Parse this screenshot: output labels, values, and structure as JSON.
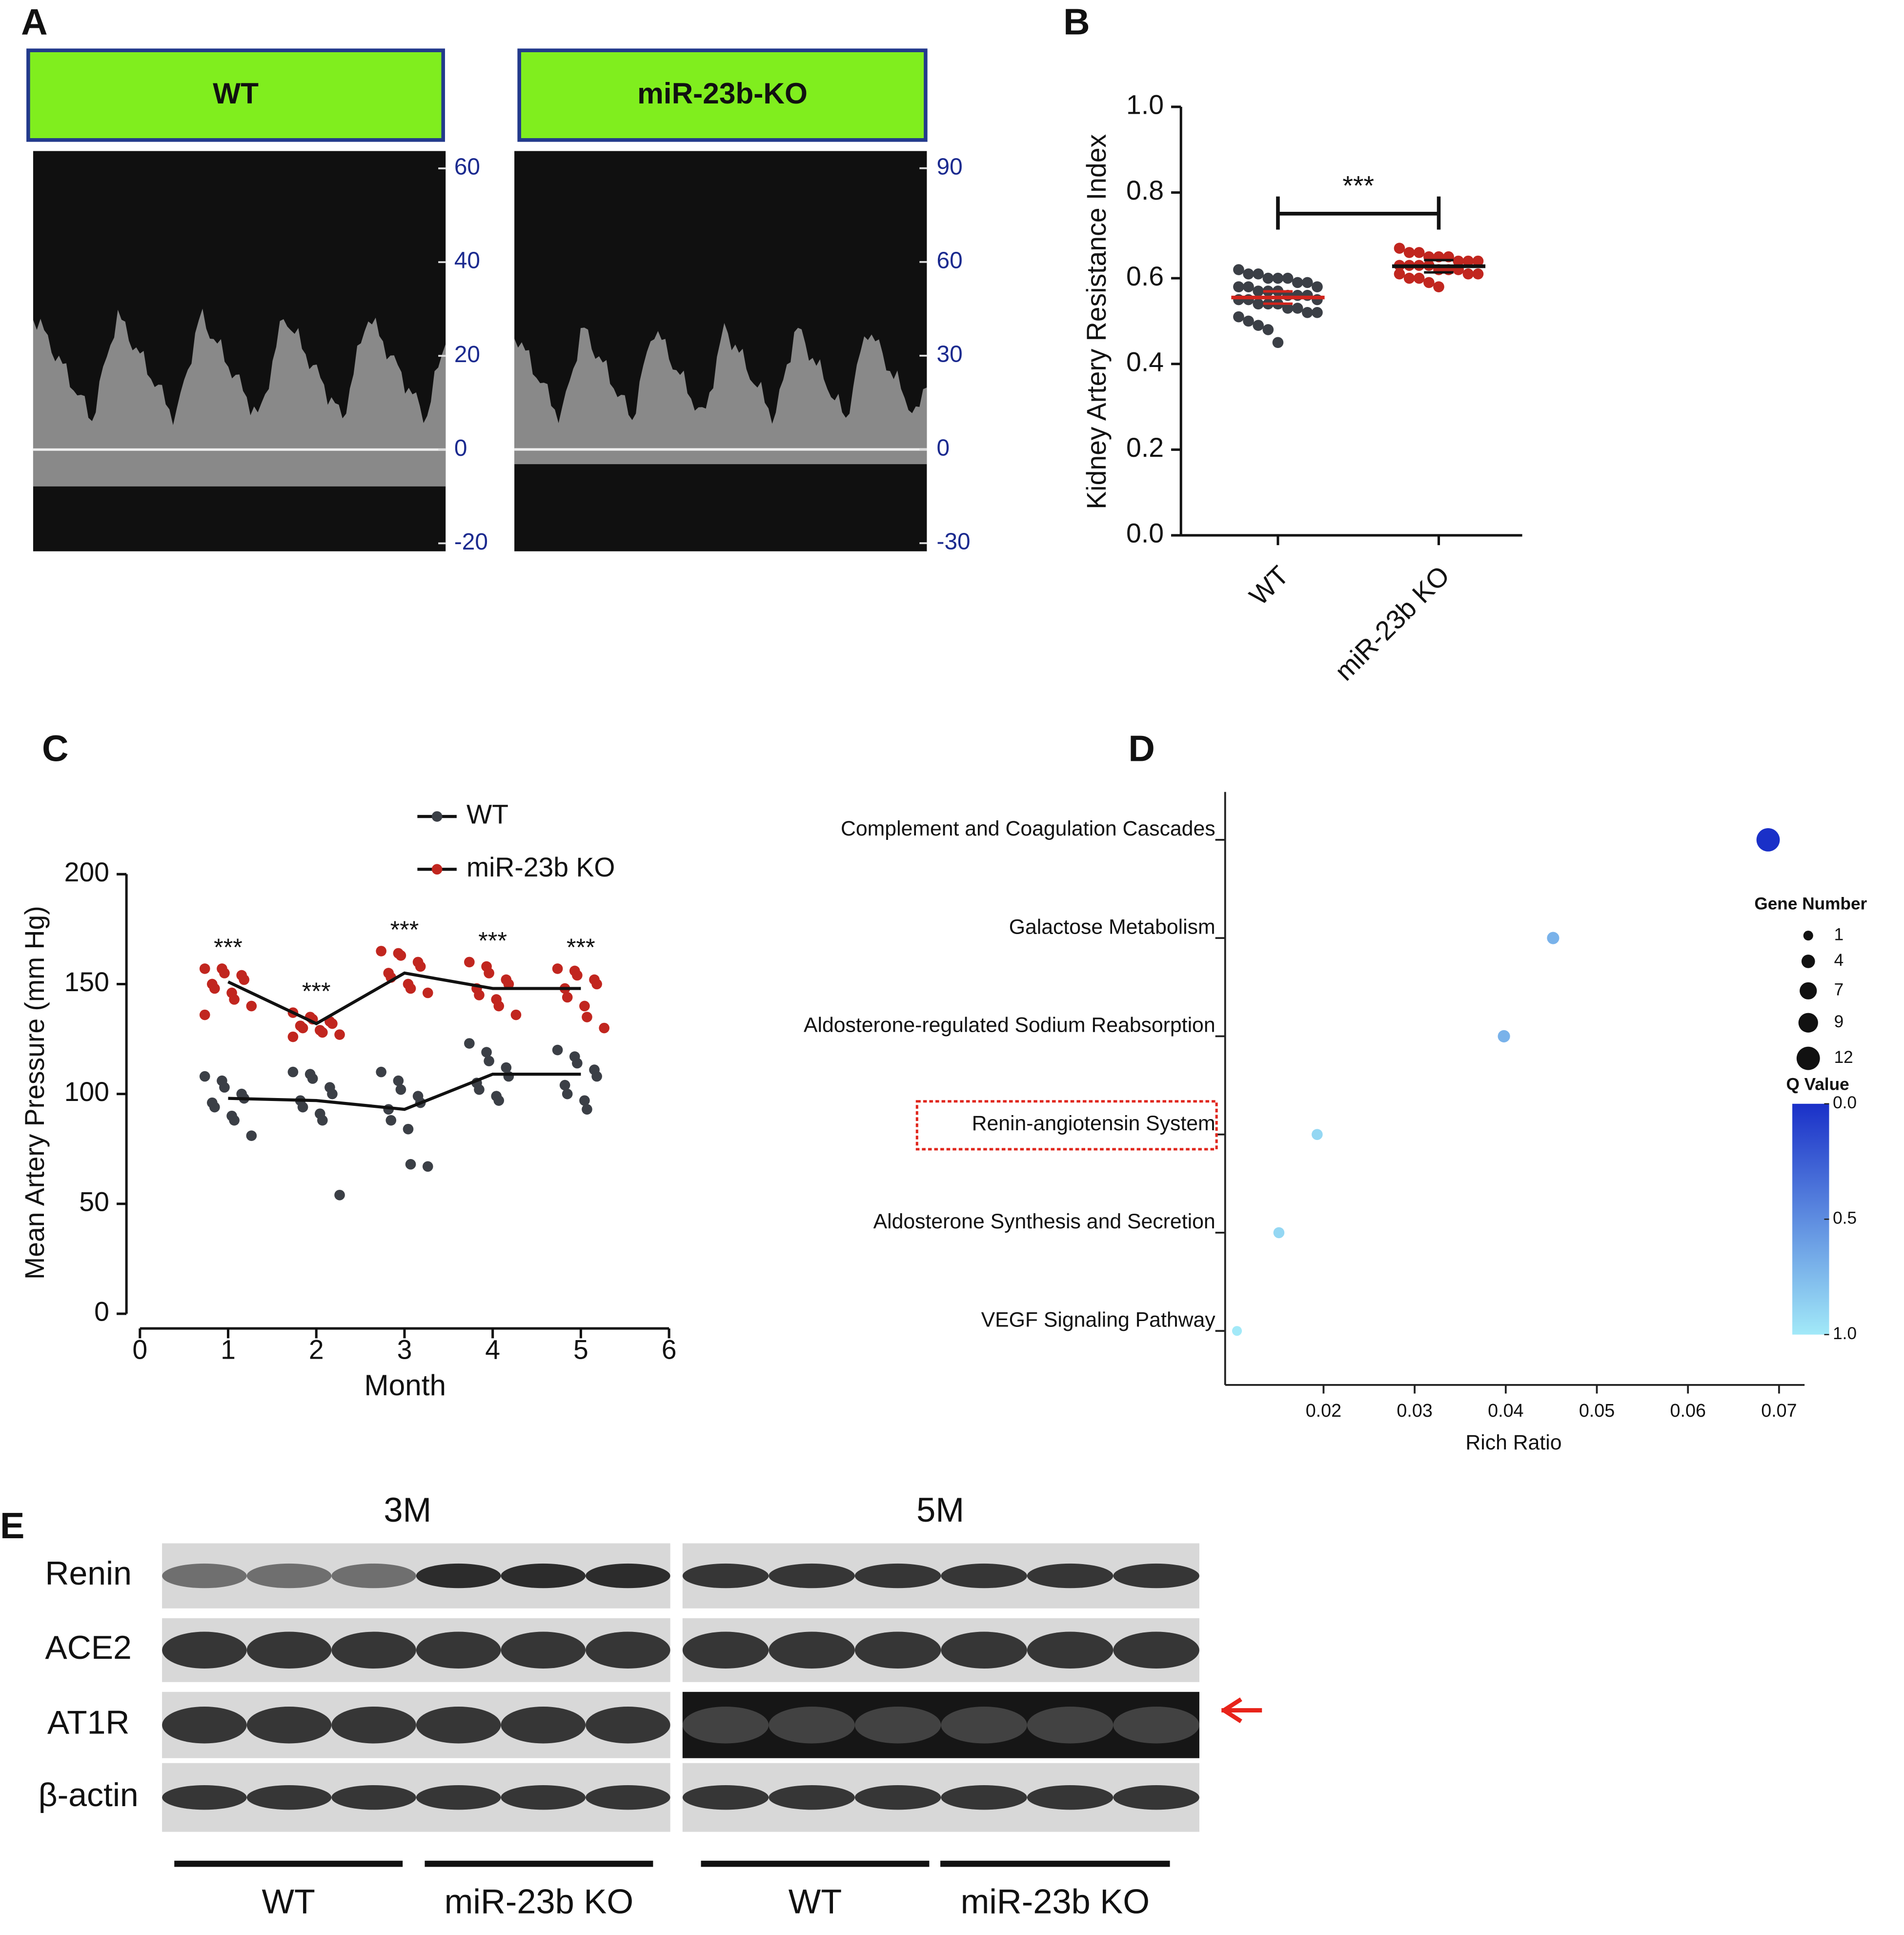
{
  "panel_labels": [
    "A",
    "B",
    "C",
    "D",
    "E"
  ],
  "doppler": {
    "panels": [
      {
        "title": "WT",
        "ylim": [
          -21.7,
          63.7
        ],
        "yticks": [
          60,
          40,
          20,
          0,
          -20
        ]
      },
      {
        "title": "miR-23b-KO",
        "ylim": [
          -32.6,
          95.5
        ],
        "yticks": [
          90,
          60,
          30,
          0,
          -30
        ]
      }
    ]
  },
  "chart_data": [
    {
      "type": "strip",
      "y_label": "Kidney Artery Resistance Index",
      "categories": [
        "WT",
        "miR-23b KO"
      ],
      "ylim": [
        0,
        1
      ],
      "yticks": [
        {
          "value": 0,
          "label": "0.0"
        },
        {
          "value": 0.2,
          "label": "0.2"
        },
        {
          "value": 0.4,
          "label": "0.4"
        },
        {
          "value": 0.6,
          "label": "0.6"
        },
        {
          "value": 0.8,
          "label": "0.8"
        },
        {
          "value": 1,
          "label": "1.0"
        }
      ],
      "significance": "***",
      "groups": [
        {
          "color": "#3b3f46",
          "mean": 0.555,
          "mean_color": "#d0241c",
          "points": [
            0.62,
            0.61,
            0.61,
            0.6,
            0.6,
            0.6,
            0.59,
            0.59,
            0.58,
            0.58,
            0.58,
            0.57,
            0.57,
            0.57,
            0.56,
            0.56,
            0.56,
            0.55,
            0.55,
            0.55,
            0.54,
            0.54,
            0.54,
            0.53,
            0.53,
            0.52,
            0.52,
            0.51,
            0.5,
            0.49,
            0.48,
            0.45
          ]
        },
        {
          "color": "#c1261f",
          "mean": 0.628,
          "mean_color": "#111111",
          "points": [
            0.67,
            0.66,
            0.66,
            0.65,
            0.65,
            0.65,
            0.64,
            0.64,
            0.64,
            0.63,
            0.63,
            0.63,
            0.63,
            0.62,
            0.62,
            0.62,
            0.61,
            0.61,
            0.61,
            0.6,
            0.6,
            0.59,
            0.58
          ]
        }
      ]
    },
    {
      "type": "line",
      "x_label": "Month",
      "y_label": "Mean Artery Pressure (mm Hg)",
      "x": [
        1,
        2,
        3,
        4,
        5
      ],
      "xlim": [
        0,
        6
      ],
      "xticks": [
        0,
        1,
        2,
        3,
        4,
        5,
        6
      ],
      "ylim": [
        0,
        200
      ],
      "yticks": [
        0,
        50,
        100,
        150,
        200
      ],
      "line_color": "#111111",
      "annotations": [
        "***",
        "***",
        "***",
        "***",
        "***"
      ],
      "series": [
        {
          "name": "WT",
          "color": "#3b3f46",
          "values": [
            98,
            97,
            93,
            109,
            109
          ],
          "points": [
            [
              108,
              106,
              103,
              100,
              98,
              96,
              94,
              90,
              88,
              81
            ],
            [
              110,
              109,
              107,
              103,
              100,
              97,
              94,
              91,
              88,
              54
            ],
            [
              110,
              106,
              102,
              99,
              96,
              93,
              88,
              84,
              68,
              67
            ],
            [
              123,
              119,
              115,
              112,
              108,
              105,
              102,
              99,
              97
            ],
            [
              120,
              117,
              114,
              111,
              108,
              104,
              100,
              97,
              93
            ]
          ]
        },
        {
          "name": "miR-23b KO",
          "color": "#c1261f",
          "values": [
            151,
            132,
            155,
            148,
            148
          ],
          "points": [
            [
              157,
              157,
              155,
              154,
              152,
              150,
              148,
              146,
              143,
              140,
              136
            ],
            [
              137,
              135,
              134,
              133,
              132,
              131,
              130,
              129,
              128,
              127,
              126
            ],
            [
              165,
              164,
              163,
              160,
              158,
              155,
              153,
              150,
              148,
              146
            ],
            [
              160,
              158,
              155,
              152,
              150,
              148,
              145,
              143,
              140,
              136
            ],
            [
              157,
              156,
              154,
              152,
              150,
              148,
              144,
              140,
              135,
              130
            ]
          ]
        }
      ]
    },
    {
      "type": "bubble",
      "x_label": "Rich Ratio",
      "categories": [
        "Complement and Coagulation Cascades",
        "Galactose Metabolism",
        "Aldosterone-regulated Sodium Reabsorption",
        "Renin-angiotensin System",
        "Aldosterone Synthesis and Secretion",
        "VEGF Signaling Pathway"
      ],
      "x": [
        0.0688,
        0.0452,
        0.0398,
        0.0193,
        0.0151,
        0.0105
      ],
      "sizes": [
        12,
        3,
        3,
        2,
        2,
        1
      ],
      "q_values": [
        0.0,
        0.7,
        0.7,
        0.9,
        0.9,
        1.0
      ],
      "xlim": [
        0.0092,
        0.0728
      ],
      "xticks": [
        0.02,
        0.03,
        0.04,
        0.05,
        0.06,
        0.07
      ],
      "highlight": 3,
      "colorscale": [
        "#1a30c8",
        "#a2e9f8"
      ],
      "size_legend": {
        "title": "Gene Number",
        "values": [
          1,
          4,
          7,
          9,
          12
        ]
      },
      "color_legend": {
        "title": "Q Value",
        "ticks": [
          {
            "value": 0,
            "label": "0.0"
          },
          {
            "value": 0.5,
            "label": "0.5"
          },
          {
            "value": 1,
            "label": "1.0"
          }
        ]
      }
    }
  ],
  "blot": {
    "timepoints": [
      "3M",
      "5M"
    ],
    "proteins": [
      "Renin",
      "ACE2",
      "AT1R",
      "β-actin"
    ],
    "groups": [
      "WT",
      "miR-23b KO",
      "WT",
      "miR-23b KO"
    ]
  }
}
